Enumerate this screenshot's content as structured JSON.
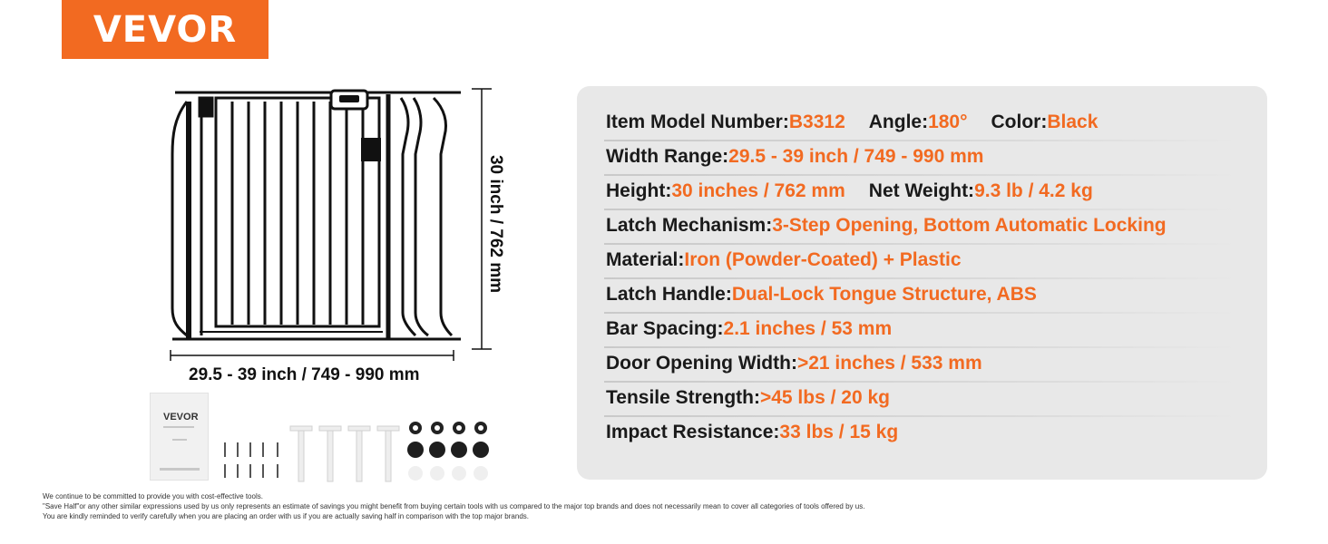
{
  "brand": {
    "logo_text": "VEVOR"
  },
  "dimensions": {
    "height": "30 inch / 762 mm",
    "width": "29.5 - 39 inch / 749 - 990 mm"
  },
  "manual": {
    "brand": "VEVOR"
  },
  "specs": [
    [
      {
        "label": "Item Model Number: ",
        "value": "B3312"
      },
      {
        "label": "Angle: ",
        "value": "180°"
      },
      {
        "label": "Color: ",
        "value": "Black"
      }
    ],
    [
      {
        "label": "Width Range: ",
        "value": "29.5 - 39 inch /  749 - 990 mm"
      }
    ],
    [
      {
        "label": "Height: ",
        "value": "30 inches / 762 mm"
      },
      {
        "label": "Net Weight: ",
        "value": "9.3 lb / 4.2 kg"
      }
    ],
    [
      {
        "label": "Latch Mechanism: ",
        "value": "3-Step Opening, Bottom Automatic Locking"
      }
    ],
    [
      {
        "label": "Material: ",
        "value": "Iron (Powder-Coated) + Plastic"
      }
    ],
    [
      {
        "label": "Latch Handle: ",
        "value": "Dual-Lock Tongue Structure, ABS"
      }
    ],
    [
      {
        "label": "Bar Spacing: ",
        "value": "2.1 inches / 53 mm"
      }
    ],
    [
      {
        "label": "Door Opening Width: ",
        "value": ">21 inches / 533 mm"
      }
    ],
    [
      {
        "label": "Tensile Strength: ",
        "value": ">45 lbs / 20 kg"
      }
    ],
    [
      {
        "label": "Impact Resistance: ",
        "value": "33 lbs / 15 kg"
      }
    ]
  ],
  "disclaimer": [
    "We continue to be committed to provide you with cost-effective tools.",
    "\"Save Half\"or any other similar expressions used by us only represents an estimate of savings you might benefit from buying certain tools with us compared to the major top brands and does not necessarily mean to cover all categories of tools offered by us.",
    "You are kindly reminded to verify carefully when you are placing an order with us if you are actually saving half in comparison with the top major brands."
  ],
  "colors": {
    "accent": "#f26a21",
    "panel": "#e8e8e8",
    "text": "#1a1a1a"
  }
}
